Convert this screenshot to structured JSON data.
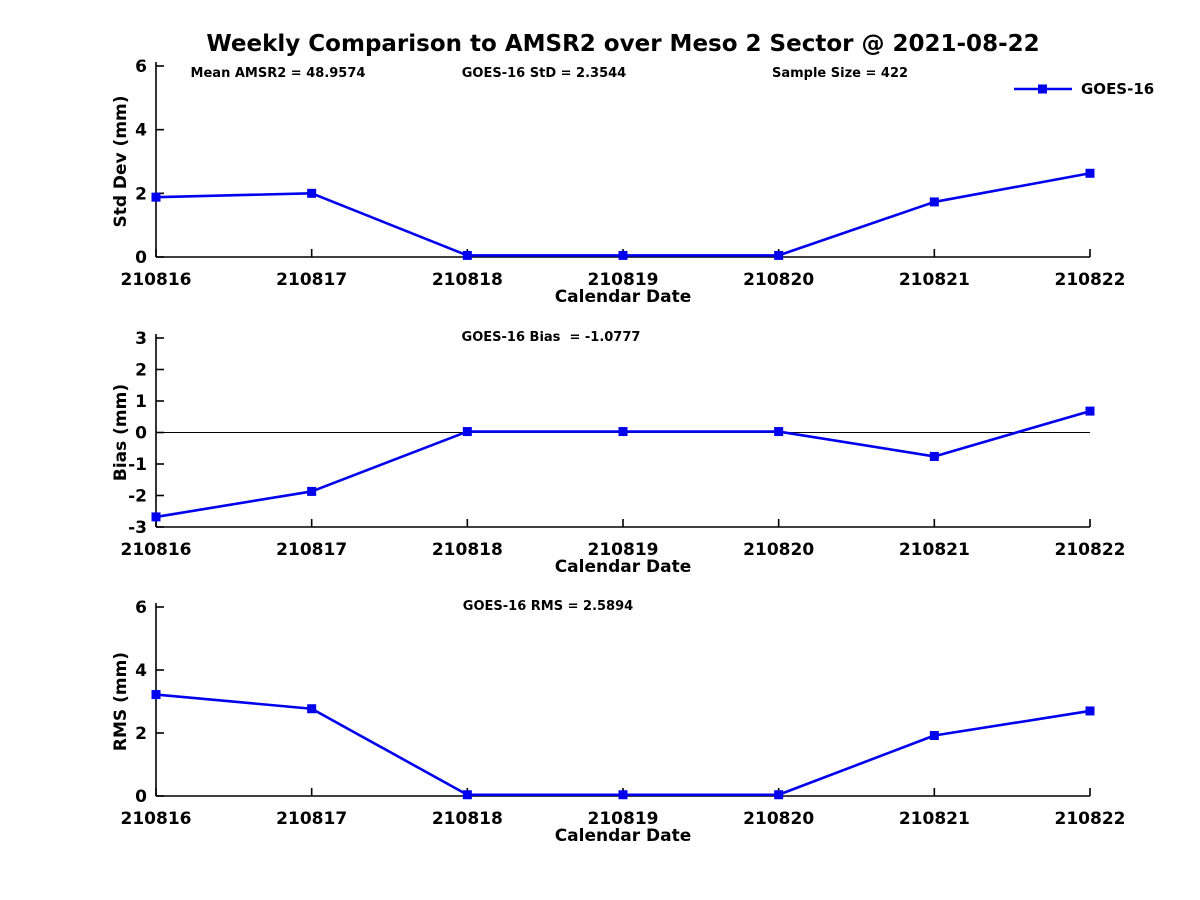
{
  "title": "Weekly Comparison to AMSR2 over Meso 2 Sector @ 2021-08-22",
  "legend": {
    "label": "GOES-16",
    "position": "top-right"
  },
  "colors": {
    "series": "#0000EE",
    "axis": "#000000",
    "text": "#000000"
  },
  "chart_data": [
    {
      "type": "line",
      "categories": [
        "210816",
        "210817",
        "210818",
        "210819",
        "210820",
        "210821",
        "210822"
      ],
      "series": [
        {
          "name": "GOES-16",
          "values": [
            1.88,
            2.0,
            0.05,
            0.05,
            0.05,
            1.73,
            2.63
          ]
        }
      ],
      "xlabel": "Calendar Date",
      "ylabel": "Std Dev (mm)",
      "ylim": [
        0,
        6
      ],
      "yticks": [
        0,
        2,
        4,
        6
      ],
      "grid": false,
      "zero_line": false,
      "annotations": [
        {
          "text": "Mean AMSR2 = 48.9574"
        },
        {
          "text": "GOES-16 StD = 2.3544"
        },
        {
          "text": "Sample Size = 422"
        }
      ]
    },
    {
      "type": "line",
      "categories": [
        "210816",
        "210817",
        "210818",
        "210819",
        "210820",
        "210821",
        "210822"
      ],
      "series": [
        {
          "name": "GOES-16",
          "values": [
            -2.68,
            -1.87,
            0.03,
            0.03,
            0.03,
            -0.76,
            0.68
          ]
        }
      ],
      "xlabel": "Calendar Date",
      "ylabel": "Bias (mm)",
      "ylim": [
        -3,
        3
      ],
      "yticks": [
        -3,
        -2,
        -1,
        0,
        1,
        2,
        3
      ],
      "grid": false,
      "zero_line": true,
      "annotations": [
        {
          "text": "GOES-16 Bias  = -1.0777"
        }
      ]
    },
    {
      "type": "line",
      "categories": [
        "210816",
        "210817",
        "210818",
        "210819",
        "210820",
        "210821",
        "210822"
      ],
      "series": [
        {
          "name": "GOES-16",
          "values": [
            3.22,
            2.77,
            0.04,
            0.04,
            0.04,
            1.92,
            2.7
          ]
        }
      ],
      "xlabel": "Calendar Date",
      "ylabel": "RMS (mm)",
      "ylim": [
        0,
        6
      ],
      "yticks": [
        0,
        2,
        4,
        6
      ],
      "grid": false,
      "zero_line": false,
      "annotations": [
        {
          "text": "GOES-16 RMS = 2.5894"
        }
      ]
    }
  ]
}
